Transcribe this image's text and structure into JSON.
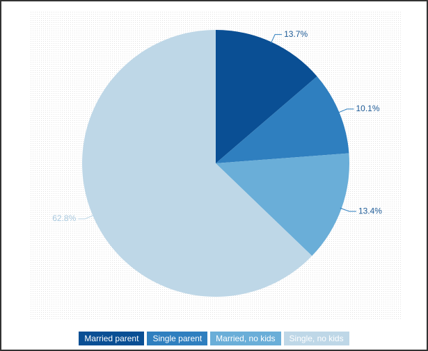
{
  "chart_data": {
    "type": "pie",
    "categories": [
      "Married parent",
      "Single parent",
      "Married, no kids",
      "Single, no kids"
    ],
    "values": [
      13.7,
      10.1,
      13.4,
      62.8
    ],
    "value_labels": [
      "13.7%",
      "10.1%",
      "13.4%",
      "62.8%"
    ],
    "colors": [
      "#0a4f94",
      "#2f7fbf",
      "#6aaed8",
      "#bed7e7"
    ],
    "legend": "bottom"
  }
}
